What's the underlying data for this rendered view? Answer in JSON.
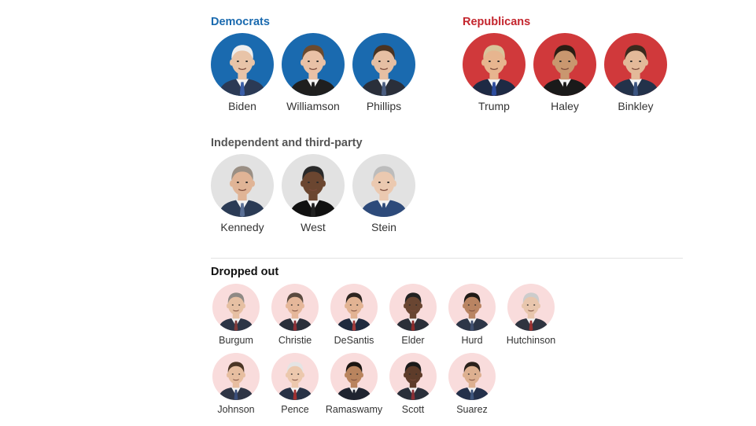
{
  "colors": {
    "democrat": "#1a6aaf",
    "republican": "#d0393b",
    "independent": "#e2e2e2",
    "dropped": "#f9dcdc",
    "heading_dem": "#1a6aaf",
    "heading_rep": "#c4262e",
    "heading_ind": "#555555",
    "heading_dropped": "#111111"
  },
  "groups": {
    "democrats": {
      "title": "Democrats",
      "candidates": [
        {
          "name": "Biden",
          "skin": "#e8c4a8",
          "hair": "#eeeeee",
          "suit": "#2b3a55",
          "tie": "#3a5ea8"
        },
        {
          "name": "Williamson",
          "skin": "#e9c1a6",
          "hair": "#6b4a2f",
          "suit": "#1f1f1f",
          "tie": "#1f1f1f"
        },
        {
          "name": "Phillips",
          "skin": "#e6bfa3",
          "hair": "#4a3423",
          "suit": "#2a2f3a",
          "tie": "#4a5d80"
        }
      ]
    },
    "republicans": {
      "title": "Republicans",
      "candidates": [
        {
          "name": "Trump",
          "skin": "#e7b58f",
          "hair": "#d9c49a",
          "suit": "#1e2a44",
          "tie": "#2c4c9e"
        },
        {
          "name": "Haley",
          "skin": "#c9976f",
          "hair": "#2b1d14",
          "suit": "#1a1a1a",
          "tie": "#1a1a1a"
        },
        {
          "name": "Binkley",
          "skin": "#e3b999",
          "hair": "#3b2a1e",
          "suit": "#23324a",
          "tie": "#3b5480"
        }
      ]
    },
    "independent": {
      "title": "Independent and third-party",
      "candidates": [
        {
          "name": "Kennedy",
          "skin": "#e0b496",
          "hair": "#9a8f84",
          "suit": "#2b3b55",
          "tie": "#5a6f95"
        },
        {
          "name": "West",
          "skin": "#6b4630",
          "hair": "#2a2a2a",
          "suit": "#111111",
          "tie": "#222222"
        },
        {
          "name": "Stein",
          "skin": "#ebc9b0",
          "hair": "#bcbcbc",
          "suit": "#2d4a7a",
          "tie": "#2d4a7a"
        }
      ]
    },
    "dropped": {
      "title": "Dropped out",
      "candidates": [
        {
          "name": "Burgum",
          "skin": "#e6c0a3",
          "hair": "#8f8a85",
          "suit": "#2c3546",
          "tie": "#7d3a3a"
        },
        {
          "name": "Christie",
          "skin": "#e5b79a",
          "hair": "#5a4a3f",
          "suit": "#2a2f3a",
          "tie": "#8a2f35"
        },
        {
          "name": "DeSantis",
          "skin": "#e2b393",
          "hair": "#2e2520",
          "suit": "#1f2a3e",
          "tie": "#a03a3a"
        },
        {
          "name": "Elder",
          "skin": "#6a4632",
          "hair": "#222222",
          "suit": "#2b2f38",
          "tie": "#8a2a2a"
        },
        {
          "name": "Hurd",
          "skin": "#b98462",
          "hair": "#1f1a16",
          "suit": "#2d3647",
          "tie": "#405070"
        },
        {
          "name": "Hutchinson",
          "skin": "#e8c6ad",
          "hair": "#cccccc",
          "suit": "#2f3440",
          "tie": "#9a3030"
        },
        {
          "name": "Johnson",
          "skin": "#e7bea0",
          "hair": "#4b3626",
          "suit": "#2f3545",
          "tie": "#3a4e7a"
        },
        {
          "name": "Pence",
          "skin": "#ecc8ad",
          "hair": "#e4e4e4",
          "suit": "#283246",
          "tie": "#a03030"
        },
        {
          "name": "Ramaswamy",
          "skin": "#b9845e",
          "hair": "#1b1511",
          "suit": "#1f2430",
          "tie": "#1f2430"
        },
        {
          "name": "Scott",
          "skin": "#5e3c2a",
          "hair": "#1a1a1a",
          "suit": "#2a2f3a",
          "tie": "#8a2f35"
        },
        {
          "name": "Suarez",
          "skin": "#ddb090",
          "hair": "#2a211b",
          "suit": "#24304a",
          "tie": "#3e557d"
        }
      ]
    }
  }
}
